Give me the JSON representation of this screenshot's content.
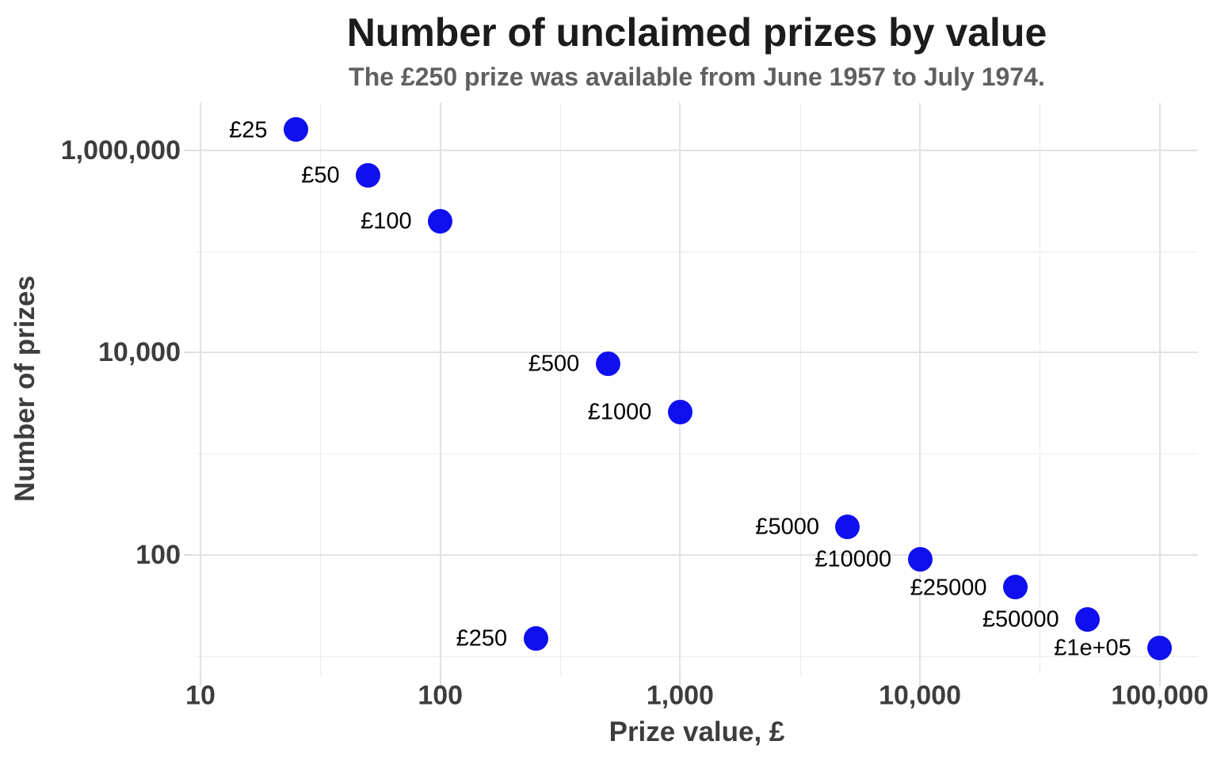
{
  "chart_data": {
    "type": "scatter",
    "title": "Number of unclaimed prizes by value",
    "subtitle": "The £250 prize was available from June 1957 to July 1974.",
    "xlabel": "Prize value, £",
    "ylabel": "Number of prizes",
    "x_scale": "log10",
    "y_scale": "log10",
    "xlim": [
      10,
      100000
    ],
    "ylim": [
      7,
      3000000
    ],
    "grid": true,
    "legend": "none",
    "x_ticks": [
      {
        "value": 10,
        "label": "10"
      },
      {
        "value": 100,
        "label": "100"
      },
      {
        "value": 1000,
        "label": "1,000"
      },
      {
        "value": 10000,
        "label": "10,000"
      },
      {
        "value": 100000,
        "label": "100,000"
      }
    ],
    "x_minor_gridlines": [
      31.62,
      316.2,
      3162,
      31620
    ],
    "y_ticks": [
      {
        "value": 1000000,
        "label": "1,000,000"
      },
      {
        "value": 10000,
        "label": "10,000"
      },
      {
        "value": 100,
        "label": "100"
      }
    ],
    "y_minor_gridlines": [
      100000,
      1000,
      10
    ],
    "points": [
      {
        "label": "£25",
        "x": 25,
        "y": 1600000
      },
      {
        "label": "£50",
        "x": 50,
        "y": 570000
      },
      {
        "label": "£100",
        "x": 100,
        "y": 200000
      },
      {
        "label": "£250",
        "x": 250,
        "y": 15
      },
      {
        "label": "£500",
        "x": 500,
        "y": 7800
      },
      {
        "label": "£1000",
        "x": 1000,
        "y": 2600
      },
      {
        "label": "£5000",
        "x": 5000,
        "y": 190
      },
      {
        "label": "£10000",
        "x": 10000,
        "y": 91
      },
      {
        "label": "£25000",
        "x": 25000,
        "y": 48
      },
      {
        "label": "£50000",
        "x": 50000,
        "y": 23
      },
      {
        "label": "£1e+05",
        "x": 100000,
        "y": 12
      }
    ],
    "colors": {
      "point": "#0f0fef",
      "point_label": "#000000",
      "title": "#1c1c1c",
      "subtitle": "#606060",
      "axis_text": "#3d3d3d",
      "gridline": "#e2e2e2",
      "gridline_minor": "#ebebeb",
      "tick_mark": "#dedede",
      "background": "#ffffff"
    }
  }
}
